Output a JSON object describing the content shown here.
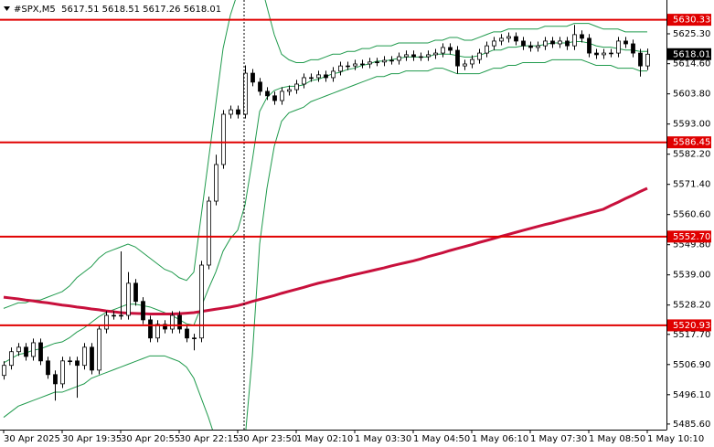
{
  "chart_data": {
    "type": "candlestick",
    "title": "#SPX,M5  5617.51 5618.51 5617.26 5618.01",
    "categories": [
      "30 Apr 2025",
      null,
      null,
      null,
      null,
      null,
      null,
      null,
      "30 Apr 19:35",
      null,
      null,
      null,
      null,
      null,
      null,
      null,
      "30 Apr 20:55",
      null,
      null,
      null,
      null,
      null,
      null,
      null,
      "30 Apr 22:15",
      null,
      null,
      null,
      null,
      null,
      null,
      null,
      "30 Apr 23:50",
      null,
      null,
      null,
      null,
      null,
      null,
      null,
      "1 May 02:10",
      null,
      null,
      null,
      null,
      null,
      null,
      null,
      "1 May 03:30",
      null,
      null,
      null,
      null,
      null,
      null,
      null,
      "1 May 04:50",
      null,
      null,
      null,
      null,
      null,
      null,
      null,
      "1 May 06:10",
      null,
      null,
      null,
      null,
      null,
      null,
      null,
      "1 May 07:30",
      null,
      null,
      null,
      null,
      null,
      null,
      null,
      "1 May 08:50",
      null,
      null,
      null,
      null,
      null,
      null,
      null,
      "1 May 10:10"
    ],
    "open": [
      5503,
      5506.6,
      5511.5,
      5513.1,
      5509.8,
      5514.7,
      5508.2,
      5503.3,
      5500.0,
      5508.2,
      5508.2,
      5506.6,
      5513.1,
      5504.9,
      5519.6,
      5524.5,
      5524.5,
      5524.5,
      5536.0,
      5529.5,
      5522.9,
      5516.4,
      5521.3,
      5519.6,
      5524.5,
      5519.6,
      5516.4,
      5516.4,
      5542.5,
      5565.4,
      5578.5,
      5596.5,
      5598.1,
      5596.5,
      5611.2,
      5608.0,
      5604.7,
      5603.1,
      5601.4,
      5604.7,
      5605.3,
      5607.3,
      5609.6,
      5609.6,
      5610.6,
      5609.6,
      5611.9,
      5613.8,
      5613.8,
      5614.5,
      5614.5,
      5615.2,
      5615.2,
      5615.8,
      5615.8,
      5617.1,
      5617.8,
      5617.1,
      5617.1,
      5617.8,
      5618.4,
      5620.4,
      5619.4,
      5613.8,
      5614.5,
      5616.1,
      5618.4,
      5621.0,
      5622.7,
      5623.7,
      5624.3,
      5622.7,
      5621.0,
      5620.4,
      5621.0,
      5622.7,
      5621.7,
      5622.7,
      5621.0,
      5625.0,
      5623.7,
      5618.4,
      5617.8,
      5618.4,
      5618.4,
      5622.7,
      5621.7,
      5618.4,
      5613.8
    ],
    "high": [
      5508.1,
      5513,
      5514.6,
      5514.6,
      5516.2,
      5516.2,
      5509.7,
      5504.8,
      5509.7,
      5509.7,
      5509.7,
      5514.6,
      5514.6,
      5521.1,
      5526,
      5526,
      5547.4,
      5540,
      5537.5,
      5531,
      5524.4,
      5522.8,
      5522.8,
      5526,
      5526,
      5521.1,
      5517.9,
      5544,
      5567,
      5582,
      5598,
      5599.6,
      5599.6,
      5614,
      5612.7,
      5609.5,
      5606.2,
      5604.6,
      5606.2,
      5606.8,
      5608.8,
      5611.1,
      5611.1,
      5612.1,
      5612.1,
      5613.4,
      5615.3,
      5615.3,
      5616,
      5616,
      5616.7,
      5616.7,
      5617.3,
      5617.3,
      5618.6,
      5619.3,
      5619.3,
      5618.6,
      5619.3,
      5619.9,
      5621.9,
      5621.9,
      5620.9,
      5616,
      5617.6,
      5619.9,
      5622.5,
      5624.2,
      5625.2,
      5625.8,
      5625.8,
      5624.2,
      5622.5,
      5622.5,
      5624.2,
      5624.2,
      5624.2,
      5624.2,
      5628.5,
      5626.5,
      5625.2,
      5619.9,
      5619.9,
      5619.9,
      5624.2,
      5624.2,
      5623.2,
      5619.9,
      5620
    ],
    "low": [
      5501.5,
      5505.1,
      5510,
      5508.3,
      5508.3,
      5506.7,
      5501.8,
      5494,
      5498.5,
      5506.7,
      5495,
      5505.1,
      5503.4,
      5503.4,
      5518.1,
      5523,
      5523,
      5523,
      5528,
      5521.4,
      5514.9,
      5514.9,
      5518.1,
      5518.1,
      5518.1,
      5514.9,
      5512,
      5514.9,
      5541,
      5563.9,
      5577,
      5595,
      5595,
      5595,
      5606.5,
      5603.2,
      5601.6,
      5599.9,
      5599.9,
      5603.2,
      5603.8,
      5605.8,
      5608.1,
      5608.1,
      5608.1,
      5608.1,
      5610.4,
      5612.3,
      5612.3,
      5613,
      5613,
      5613.7,
      5613.7,
      5614.3,
      5614.3,
      5615.6,
      5615.6,
      5615.6,
      5615.6,
      5616.3,
      5616.9,
      5617.9,
      5611,
      5612.3,
      5613,
      5614.6,
      5616.9,
      5619.5,
      5621.2,
      5622.2,
      5621.2,
      5619.5,
      5618.9,
      5618.9,
      5619.5,
      5620.2,
      5620.2,
      5619.5,
      5619.5,
      5622.2,
      5616.9,
      5616.3,
      5616.3,
      5616.9,
      5616.9,
      5620.2,
      5616.9,
      5610,
      5612.3
    ],
    "close": [
      5506.6,
      5511.5,
      5513.1,
      5509.8,
      5514.7,
      5508.2,
      5503.3,
      5500.0,
      5508.2,
      5508.2,
      5506.6,
      5513.1,
      5504.9,
      5519.6,
      5524.5,
      5524.5,
      5524.5,
      5536.0,
      5529.5,
      5522.9,
      5516.4,
      5521.3,
      5519.6,
      5524.5,
      5519.6,
      5516.4,
      5516.4,
      5542.5,
      5565.4,
      5578.5,
      5596.5,
      5598.1,
      5596.5,
      5611.2,
      5608.0,
      5604.7,
      5603.1,
      5601.4,
      5604.7,
      5605.3,
      5607.3,
      5609.6,
      5609.6,
      5610.6,
      5609.6,
      5611.9,
      5613.8,
      5613.8,
      5614.5,
      5614.5,
      5615.2,
      5615.2,
      5615.8,
      5615.8,
      5617.1,
      5617.8,
      5617.1,
      5617.1,
      5617.8,
      5618.4,
      5620.4,
      5619.4,
      5613.8,
      5614.5,
      5616.1,
      5618.4,
      5621.0,
      5622.7,
      5623.7,
      5624.3,
      5622.7,
      5621.0,
      5620.4,
      5621.0,
      5622.7,
      5621.7,
      5622.7,
      5621.0,
      5625.0,
      5623.7,
      5618.4,
      5617.8,
      5618.4,
      5618.4,
      5622.7,
      5621.7,
      5618.4,
      5613.8,
      5618.0
    ],
    "candle_color": "#000000",
    "indicators": [
      {
        "color": "#1f9a4c",
        "width": 1,
        "values": [
          5527,
          5528,
          5529,
          5529,
          5530,
          5530,
          5531,
          5532,
          5533,
          5535,
          5538,
          5540,
          5542,
          5545,
          5547,
          5548,
          5549,
          5550,
          5549,
          5547,
          5545,
          5543,
          5541,
          5540,
          5538,
          5537,
          5540,
          5560,
          5580,
          5600,
          5620,
          5632,
          5640,
          5648,
          5650,
          5645,
          5635,
          5625,
          5618,
          5616,
          5615,
          5615,
          5616,
          5616,
          5617,
          5618,
          5618,
          5619,
          5619,
          5620,
          5620,
          5621,
          5621,
          5621,
          5622,
          5622,
          5622,
          5622,
          5622,
          5623,
          5623,
          5624,
          5624,
          5623,
          5623,
          5624,
          5625,
          5626,
          5626,
          5627,
          5627,
          5627,
          5627,
          5627,
          5628,
          5628,
          5628,
          5628,
          5629,
          5629,
          5629,
          5628,
          5627,
          5627,
          5627,
          5626,
          5626,
          5626,
          5626
        ]
      },
      {
        "color": "#1f9a4c",
        "width": 1,
        "values": [
          5507.5,
          5509,
          5510.5,
          5511,
          5512,
          5512.5,
          5513.5,
          5514.5,
          5515,
          5516.5,
          5518.5,
          5520,
          5522,
          5524,
          5525.5,
          5526.5,
          5527.5,
          5528.5,
          5528.5,
          5528,
          5527.5,
          5526.5,
          5525.5,
          5524.5,
          5523,
          5521.5,
          5521,
          5527.5,
          5534,
          5540,
          5547.5,
          5552,
          5555,
          5564,
          5580,
          5597.5,
          5602.5,
          5605,
          5606,
          5606.5,
          5606.5,
          5607,
          5608.5,
          5609,
          5610,
          5611,
          5611.5,
          5612.5,
          5613,
          5614,
          5614.5,
          5615.5,
          5615.5,
          5616,
          5616.5,
          5617,
          5617,
          5617,
          5617,
          5618,
          5618,
          5618,
          5617.5,
          5617,
          5617,
          5617.5,
          5618.5,
          5619.5,
          5619.5,
          5620.5,
          5620.5,
          5621,
          5621,
          5621,
          5621.5,
          5622,
          5622,
          5622,
          5622.5,
          5622.5,
          5622,
          5621,
          5620.5,
          5620.5,
          5620,
          5619.5,
          5619.5,
          5619,
          5619
        ]
      },
      {
        "color": "#1f9a4c",
        "width": 1,
        "values": [
          5488,
          5490,
          5492,
          5493,
          5494,
          5495,
          5496,
          5497,
          5497,
          5498,
          5499,
          5500,
          5502,
          5503,
          5504,
          5505,
          5506,
          5507,
          5508,
          5509,
          5510,
          5510,
          5510,
          5509,
          5508,
          5506,
          5502,
          5495,
          5488,
          5480,
          5475,
          5472,
          5470,
          5480,
          5510,
          5550,
          5570,
          5585,
          5594,
          5597,
          5598,
          5599,
          5601,
          5602,
          5603,
          5604,
          5605,
          5606,
          5607,
          5608,
          5609,
          5610,
          5610,
          5611,
          5611,
          5612,
          5612,
          5612,
          5612,
          5613,
          5613,
          5612,
          5611,
          5611,
          5611,
          5611,
          5612,
          5613,
          5613,
          5614,
          5614,
          5615,
          5615,
          5615,
          5615,
          5616,
          5616,
          5616,
          5616,
          5616,
          5615,
          5614,
          5614,
          5614,
          5613,
          5613,
          5613,
          5612,
          5612
        ]
      },
      {
        "color": "#c8103c",
        "width": 3,
        "values": [
          5531,
          5530.7,
          5530.4,
          5530,
          5529.7,
          5529.3,
          5529,
          5528.6,
          5528.2,
          5527.9,
          5527.5,
          5527.2,
          5526.8,
          5526.5,
          5526.1,
          5525.8,
          5525.5,
          5525.3,
          5525.2,
          5525.1,
          5525,
          5525,
          5525,
          5525,
          5525.1,
          5525.3,
          5525.5,
          5525.9,
          5526.3,
          5526.7,
          5527.1,
          5527.5,
          5528,
          5528.7,
          5529.5,
          5530.2,
          5530.9,
          5531.6,
          5532.4,
          5533.1,
          5533.8,
          5534.5,
          5535.3,
          5536,
          5536.6,
          5537.2,
          5537.8,
          5538.5,
          5539.1,
          5539.7,
          5540.3,
          5540.9,
          5541.5,
          5542.2,
          5542.8,
          5543.4,
          5544,
          5544.7,
          5545.5,
          5546.2,
          5546.9,
          5547.7,
          5548.4,
          5549.1,
          5549.8,
          5550.6,
          5551.3,
          5552,
          5552.8,
          5553.5,
          5554.2,
          5554.9,
          5555.6,
          5556.3,
          5557,
          5557.6,
          5558.3,
          5559,
          5559.7,
          5560.4,
          5561.1,
          5561.8,
          5562.5,
          5563.8,
          5565,
          5566.3,
          5567.5,
          5568.8,
          5570
        ]
      }
    ],
    "levels": [
      5630.33,
      5586.45,
      {
        "value": 5552.7,
        "label": "5552.70"
      },
      5520.93
    ],
    "level_color": "#e00000",
    "last_price": 5618.01,
    "ylim": [
      5483.6,
      5637.4
    ],
    "yticks": [
      {
        "value": 5625.3,
        "label": "5625.30"
      },
      {
        "value": 5614.6,
        "label": "5614.60"
      },
      {
        "value": 5603.8,
        "label": "5603.80"
      },
      {
        "value": 5593.0,
        "label": "5593.00"
      },
      {
        "value": 5582.2,
        "label": "5582.20"
      },
      {
        "value": 5571.4,
        "label": "5571.40"
      },
      {
        "value": 5560.6,
        "label": "5560.60"
      },
      {
        "value": 5549.8,
        "label": "5549.80"
      },
      {
        "value": 5539.0,
        "label": "5539.00"
      },
      {
        "value": 5528.2,
        "label": "5528.20"
      },
      {
        "value": 5517.7,
        "label": "5517.70"
      },
      {
        "value": 5506.9,
        "label": "5506.90"
      },
      {
        "value": 5496.1,
        "label": "5496.10"
      },
      {
        "value": 5485.6,
        "label": "5485.60"
      }
    ]
  }
}
